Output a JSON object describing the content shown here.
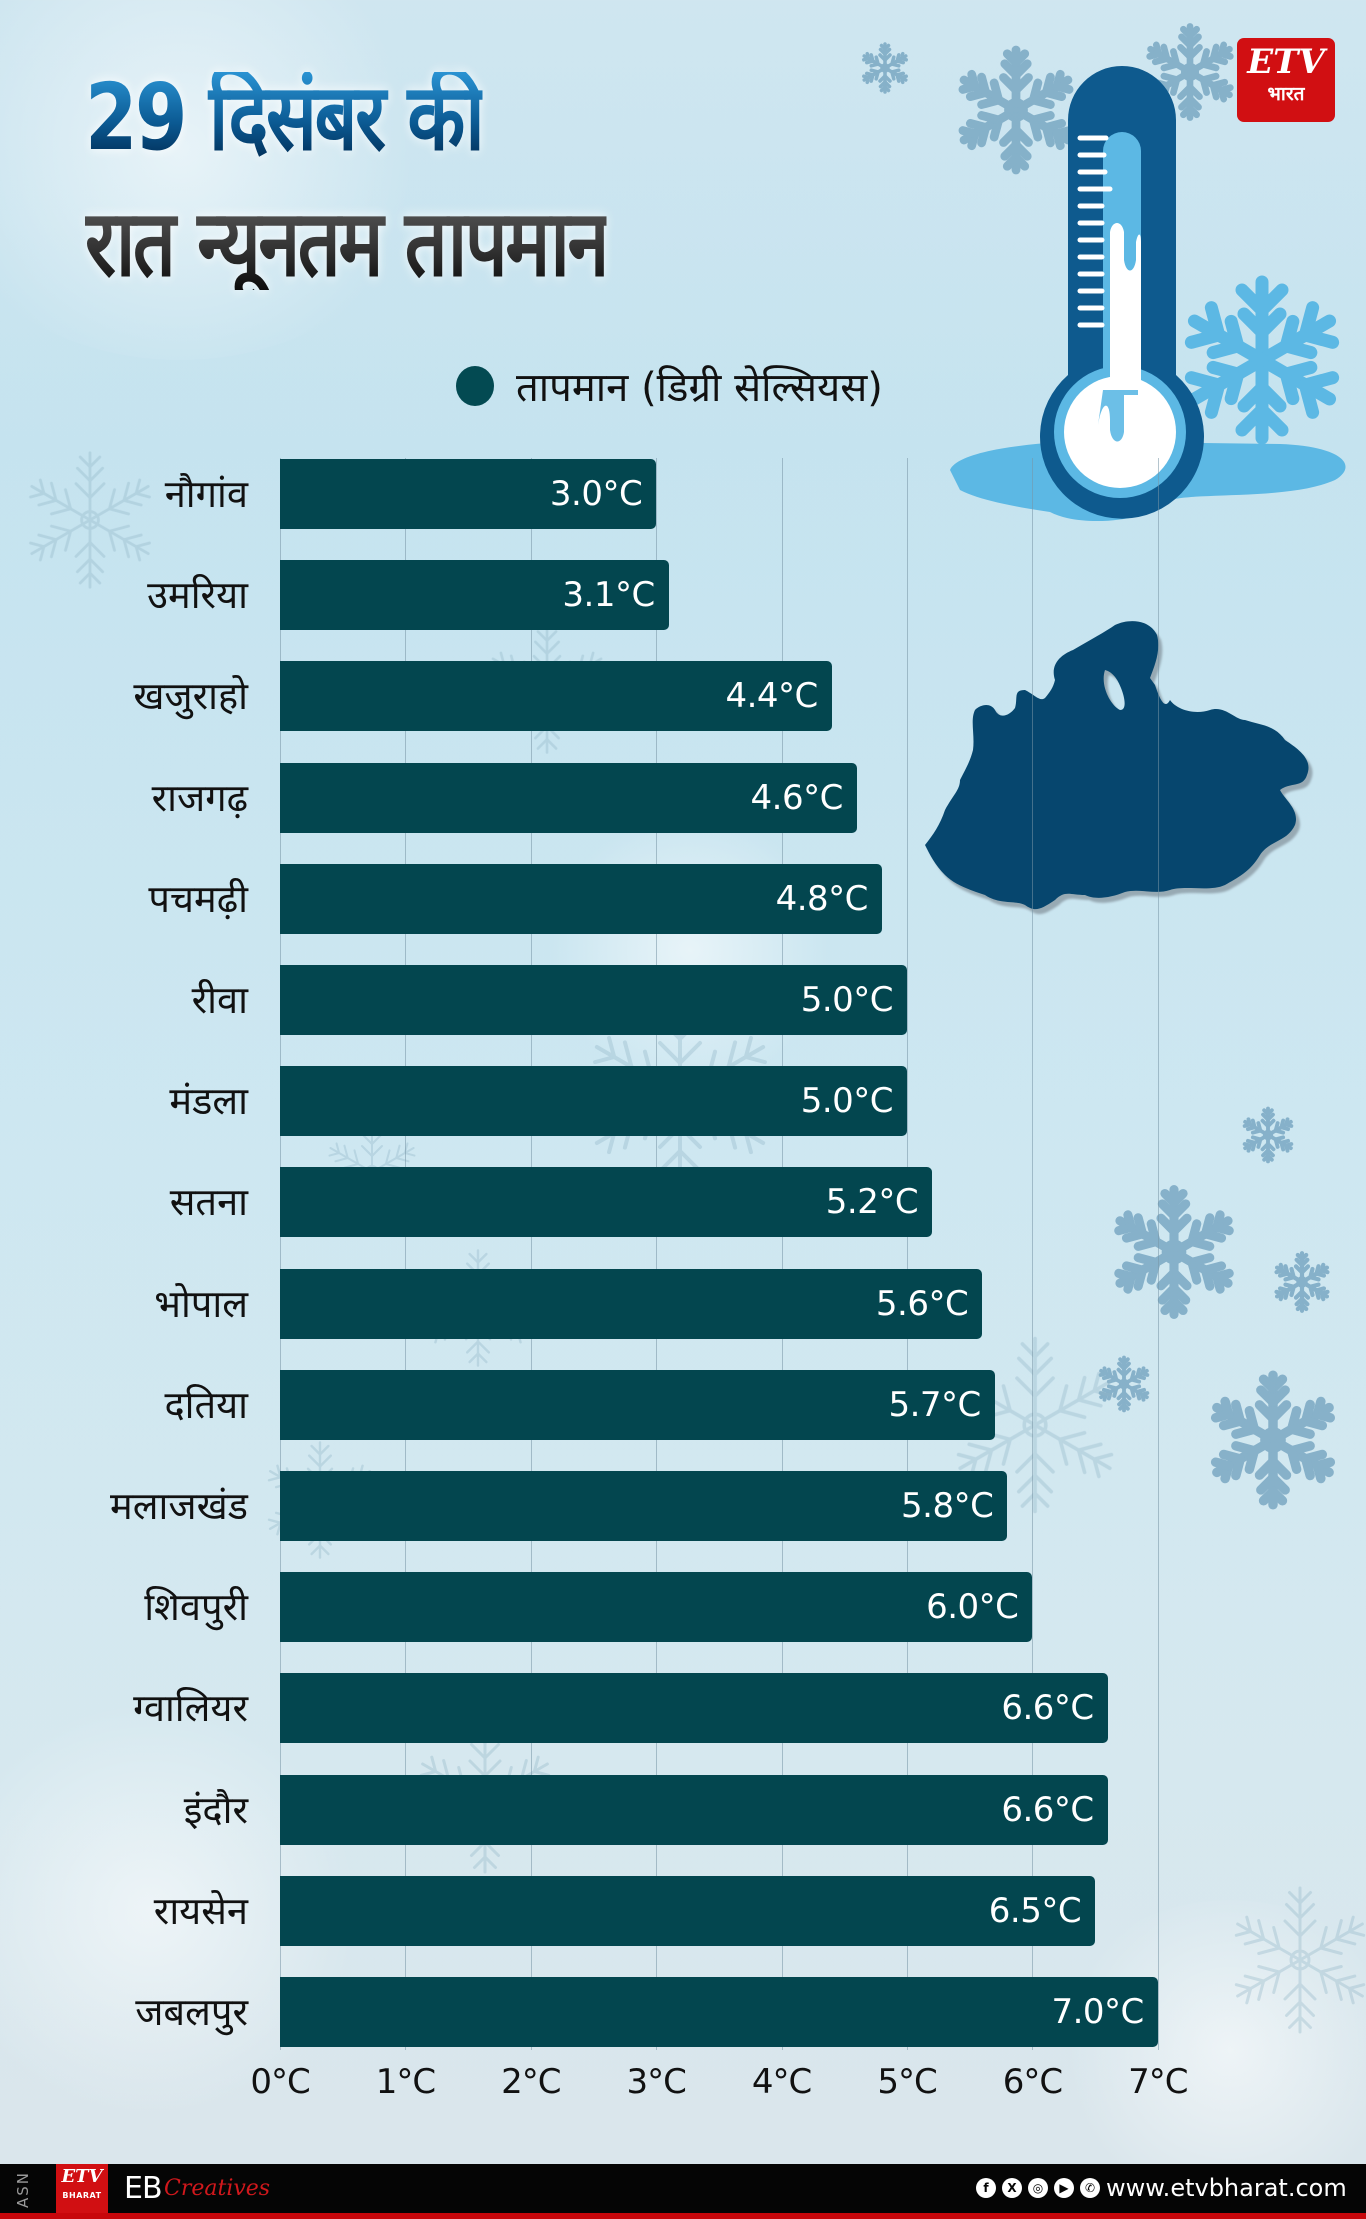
{
  "title": {
    "line1": "29 दिसंबर की",
    "line2": "रात न्यूनतम तापमान"
  },
  "legend": {
    "label": "तापमान (डिग्री सेल्सियस)",
    "color": "#034a52"
  },
  "brand": {
    "logo_mark": "ETV",
    "logo_sub": "भारत",
    "logo_color": "#d10f12"
  },
  "axis": {
    "ticks": [
      "0°C",
      "1°C",
      "2°C",
      "3°C",
      "4°C",
      "5°C",
      "6°C",
      "7°C"
    ]
  },
  "rows": [
    {
      "city": "नौगांव",
      "value": "3.0°C"
    },
    {
      "city": "उमरिया",
      "value": "3.1°C"
    },
    {
      "city": "खजुराहो",
      "value": "4.4°C"
    },
    {
      "city": "राजगढ़",
      "value": "4.6°C"
    },
    {
      "city": "पचमढ़ी",
      "value": "4.8°C"
    },
    {
      "city": "रीवा",
      "value": "5.0°C"
    },
    {
      "city": "मंडला",
      "value": "5.0°C"
    },
    {
      "city": "सतना",
      "value": "5.2°C"
    },
    {
      "city": "भोपाल",
      "value": "5.6°C"
    },
    {
      "city": "दतिया",
      "value": "5.7°C"
    },
    {
      "city": "मलाजखंड",
      "value": "5.8°C"
    },
    {
      "city": "शिवपुरी",
      "value": "6.0°C"
    },
    {
      "city": "ग्वालियर",
      "value": "6.6°C"
    },
    {
      "city": "इंदौर",
      "value": "6.6°C"
    },
    {
      "city": "रायसेन",
      "value": "6.5°C"
    },
    {
      "city": "जबलपुर",
      "value": "7.0°C"
    }
  ],
  "footer": {
    "side_text": "ASN",
    "logo_mark": "ETV",
    "logo_sub": "BHARAT",
    "eb": "EB",
    "creatives": "Creatives",
    "social_icons": [
      "facebook-icon",
      "x-icon",
      "instagram-icon",
      "youtube-icon",
      "whatsapp-icon"
    ],
    "social_glyphs": [
      "f",
      "X",
      "◎",
      "▶",
      "✆"
    ],
    "website": "www.etvbharat.com"
  },
  "colors": {
    "bar": "#03464f",
    "title_blue": "#0b5a93",
    "title_dark": "#222222",
    "map": "#06466e",
    "thermometer_dark": "#0e5a8e",
    "ice_light": "#5cb8e4",
    "footer_bg": "#050505",
    "footer_red": "#c8070b"
  },
  "chart_data": {
    "type": "bar",
    "orientation": "horizontal",
    "title": "29 दिसंबर की रात न्यूनतम तापमान",
    "legend": [
      "तापमान (डिग्री सेल्सियस)"
    ],
    "legend_position": "top",
    "categories": [
      "नौगांव",
      "उमरिया",
      "खजुराहो",
      "राजगढ़",
      "पचमढ़ी",
      "रीवा",
      "मंडला",
      "सतना",
      "भोपाल",
      "दतिया",
      "मलाजखंड",
      "शिवपुरी",
      "ग्वालियर",
      "इंदौर",
      "रायसेन",
      "जबलपुर"
    ],
    "values": [
      3.0,
      3.1,
      4.4,
      4.6,
      4.8,
      5.0,
      5.0,
      5.2,
      5.6,
      5.7,
      5.8,
      6.0,
      6.6,
      6.6,
      6.5,
      7.0
    ],
    "series": [
      {
        "name": "तापमान (डिग्री सेल्सियस)",
        "values": [
          3.0,
          3.1,
          4.4,
          4.6,
          4.8,
          5.0,
          5.0,
          5.2,
          5.6,
          5.7,
          5.8,
          6.0,
          6.6,
          6.6,
          6.5,
          7.0
        ]
      }
    ],
    "xlabel": "",
    "ylabel": "",
    "xlim": [
      0,
      7
    ],
    "x_ticks": [
      "0°C",
      "1°C",
      "2°C",
      "3°C",
      "4°C",
      "5°C",
      "6°C",
      "7°C"
    ],
    "grid": true,
    "data_labels": true,
    "unit": "°C"
  }
}
